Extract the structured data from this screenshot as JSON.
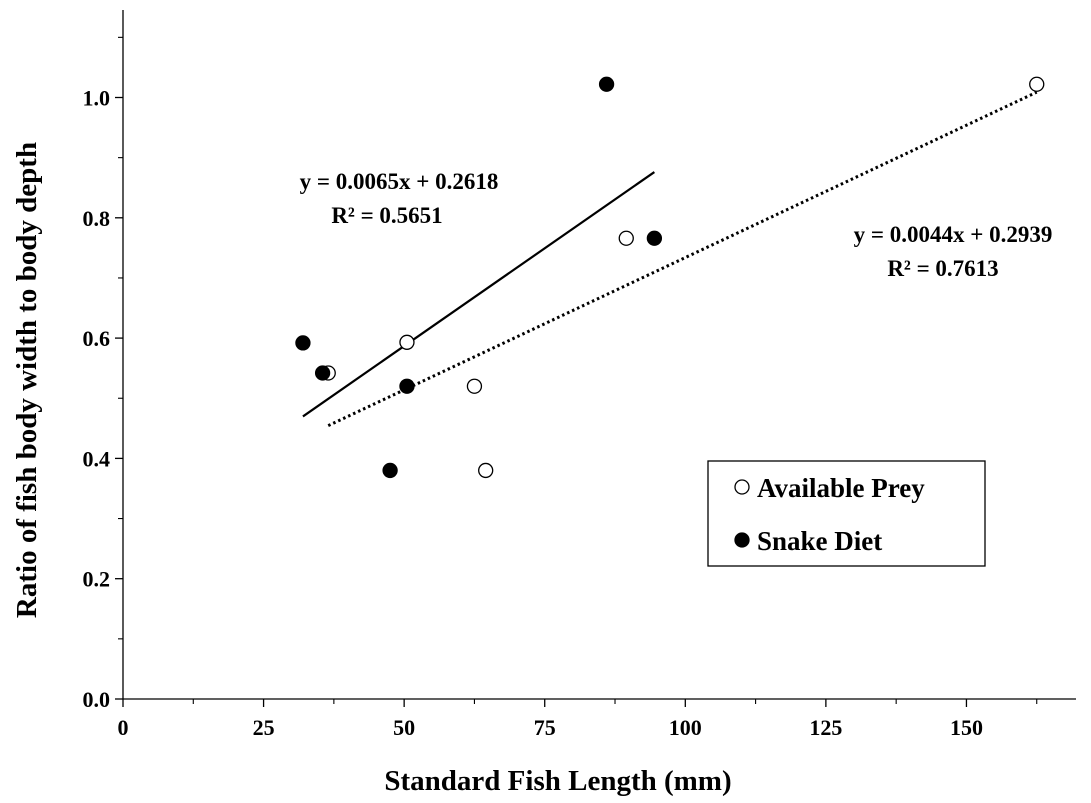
{
  "chart_data": {
    "type": "scatter",
    "xlabel": "Standard Fish Length (mm)",
    "ylabel": "Ratio of fish body width to body depth",
    "xlim": [
      0,
      170
    ],
    "ylim": [
      0,
      1.15
    ],
    "x_ticks": [
      0,
      25,
      50,
      75,
      100,
      125,
      150
    ],
    "x_tick_labels": [
      "0",
      "25",
      "50",
      "75",
      "100",
      "125",
      "150"
    ],
    "y_ticks": [
      0.0,
      0.2,
      0.4,
      0.6,
      0.8,
      1.0
    ],
    "y_tick_labels": [
      "0.0",
      "0.2",
      "0.4",
      "0.6",
      "0.8",
      "1.0"
    ],
    "grid": false,
    "legend_position": "lower-right",
    "series": [
      {
        "name": "Available Prey",
        "marker": "open-circle",
        "color": "#000000",
        "points": [
          {
            "x": 36.5,
            "y": 0.542
          },
          {
            "x": 50.5,
            "y": 0.593
          },
          {
            "x": 62.5,
            "y": 0.52
          },
          {
            "x": 64.5,
            "y": 0.38
          },
          {
            "x": 89.5,
            "y": 0.766
          },
          {
            "x": 162.5,
            "y": 1.022
          }
        ],
        "trendline": {
          "style": "dotted",
          "slope": 0.0044,
          "intercept": 0.2939,
          "x_range": [
            36.5,
            162.5
          ],
          "equation": "y = 0.0044x + 0.2939",
          "r_squared": "R² = 0.7613"
        }
      },
      {
        "name": "Snake Diet",
        "marker": "filled-circle",
        "color": "#000000",
        "points": [
          {
            "x": 32.0,
            "y": 0.592
          },
          {
            "x": 35.5,
            "y": 0.542
          },
          {
            "x": 47.5,
            "y": 0.38
          },
          {
            "x": 50.5,
            "y": 0.52
          },
          {
            "x": 86.0,
            "y": 1.022
          },
          {
            "x": 94.5,
            "y": 0.766
          }
        ],
        "trendline": {
          "style": "solid",
          "slope": 0.0065,
          "intercept": 0.2618,
          "x_range": [
            32.0,
            94.5
          ],
          "equation": "y = 0.0065x + 0.2618",
          "r_squared": "R² = 0.5651"
        }
      }
    ]
  }
}
